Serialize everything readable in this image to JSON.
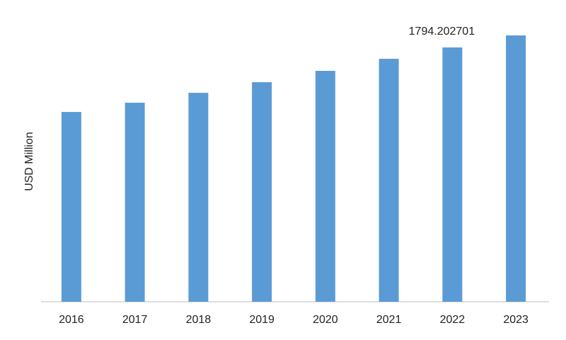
{
  "chart_data": {
    "type": "bar",
    "y_label": "USD Million",
    "categories": [
      "2016",
      "2017",
      "2018",
      "2019",
      "2020",
      "2021",
      "2022",
      "2023"
    ],
    "values": [
      1339,
      1404,
      1474,
      1549,
      1629,
      1714,
      1794.202701,
      1879
    ],
    "value_labels": [
      null,
      null,
      null,
      null,
      null,
      null,
      "1794.202701",
      null
    ],
    "color": "#5b9bd5"
  }
}
